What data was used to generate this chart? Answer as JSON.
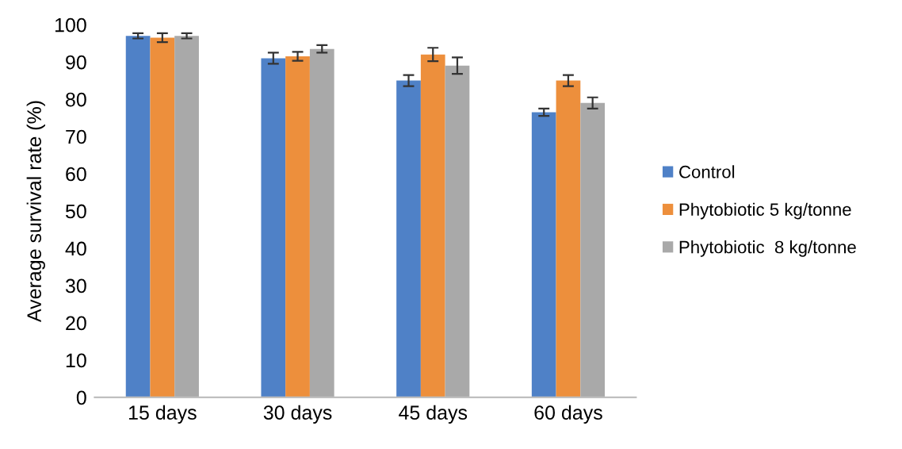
{
  "chart_data": {
    "type": "bar",
    "ylabel": "Average survival rate (%)",
    "categories": [
      "15 days",
      "30 days",
      "45 days",
      "60 days"
    ],
    "series": [
      {
        "name": "Control",
        "color": "#4f81c7",
        "values": [
          97,
          91,
          85,
          76.5
        ],
        "errors": [
          0.7,
          1.5,
          1.5,
          1
        ]
      },
      {
        "name": "Phytobiotic 5 kg/tonne",
        "color": "#ed8f3c",
        "values": [
          96.5,
          91.5,
          92,
          85
        ],
        "errors": [
          1.2,
          1.2,
          1.8,
          1.5
        ]
      },
      {
        "name": "Phytobiotic  8 kg/tonne",
        "color": "#a9a9a9",
        "values": [
          97,
          93.5,
          89,
          79
        ],
        "errors": [
          0.7,
          1,
          2.2,
          1.5
        ]
      }
    ],
    "ylim": [
      0,
      100
    ],
    "yticks": [
      0,
      10,
      20,
      30,
      40,
      50,
      60,
      70,
      80,
      90,
      100
    ],
    "grid": false,
    "legend": "right"
  }
}
